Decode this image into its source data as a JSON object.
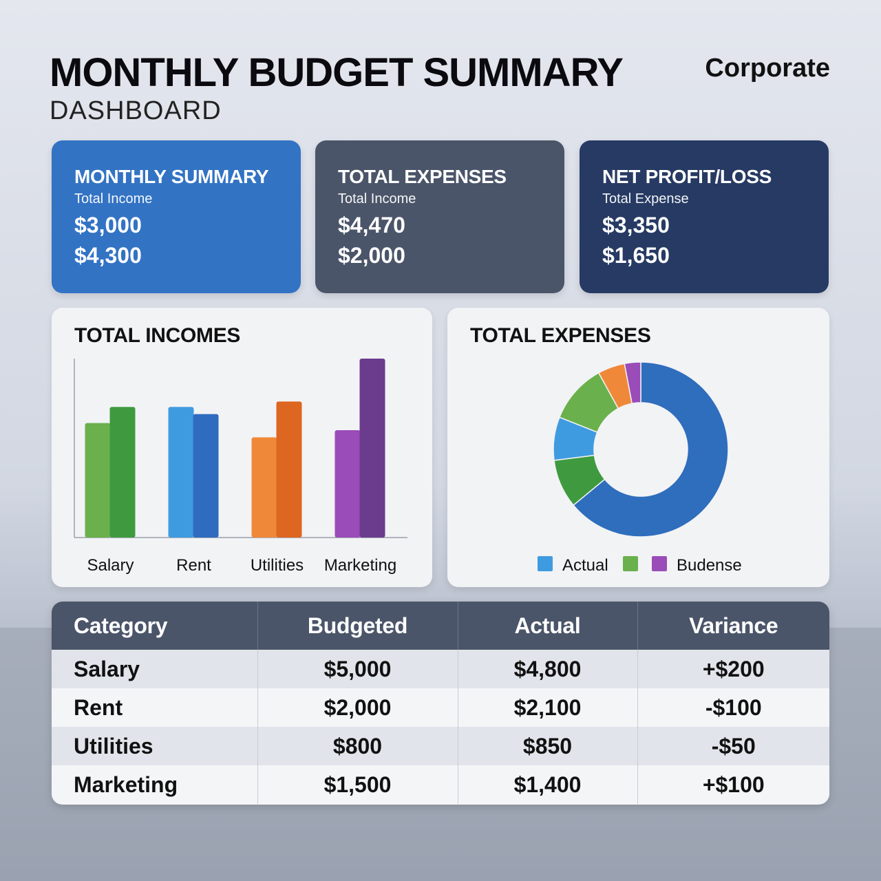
{
  "header": {
    "title": "MONTHLY BUDGET SUMMARY",
    "subtitle": "DASHBOARD",
    "brand": "Corporate"
  },
  "cards": [
    {
      "title": "MONTHLY SUMMARY",
      "label": "Total Income",
      "values": [
        "$3,000",
        "$4,300"
      ],
      "color": "#3273c4"
    },
    {
      "title": "TOTAL EXPENSES",
      "label": "Total Income",
      "values": [
        "$4,470",
        "$2,000"
      ],
      "color": "#4b5569"
    },
    {
      "title": "NET PROFIT/LOSS",
      "label": "Total Expense",
      "values": [
        "$3,350",
        "$1,650"
      ],
      "color": "#263a63"
    }
  ],
  "chart_data": [
    {
      "type": "bar",
      "title": "TOTAL INCOMES",
      "categories": [
        "Salary",
        "Rent",
        "Utilities",
        "Marketing"
      ],
      "series": [
        {
          "values": [
            64,
            73,
            56,
            60
          ]
        },
        {
          "values": [
            73,
            69,
            76,
            100
          ]
        }
      ],
      "colors": [
        [
          "#6ab04c",
          "#3f9a3f"
        ],
        [
          "#3f9be0",
          "#2f6bbf"
        ],
        [
          "#f0883a",
          "#dd6620"
        ],
        [
          "#9a4cb8",
          "#6b3b8e"
        ]
      ],
      "ylim": [
        0,
        100
      ],
      "grid": false
    },
    {
      "type": "pie",
      "title": "TOTAL EXPENSES",
      "slices": [
        {
          "value": 64,
          "color": "#2f6dbd"
        },
        {
          "value": 9,
          "color": "#3f9a3f"
        },
        {
          "value": 8,
          "color": "#3f9be0"
        },
        {
          "value": 11,
          "color": "#6ab04c"
        },
        {
          "value": 5,
          "color": "#f0883a"
        },
        {
          "value": 3,
          "color": "#9a4cb8"
        }
      ],
      "legend": [
        {
          "label": "Actual",
          "color": "#3f9be0"
        },
        {
          "label": "",
          "color": "#6ab04c"
        },
        {
          "label": "Budense",
          "color": "#9a4cb8"
        }
      ],
      "legend_position": "bottom"
    }
  ],
  "table": {
    "columns": [
      "Category",
      "Budgeted",
      "Actual",
      "Variance"
    ],
    "rows": [
      [
        "Salary",
        "$5,000",
        "$4,800",
        "+$200"
      ],
      [
        "Rent",
        "$2,000",
        "$2,100",
        "-$100"
      ],
      [
        "Utilities",
        "$800",
        "$850",
        "-$50"
      ],
      [
        "Marketing",
        "$1,500",
        "$1,400",
        "+$100"
      ]
    ]
  }
}
